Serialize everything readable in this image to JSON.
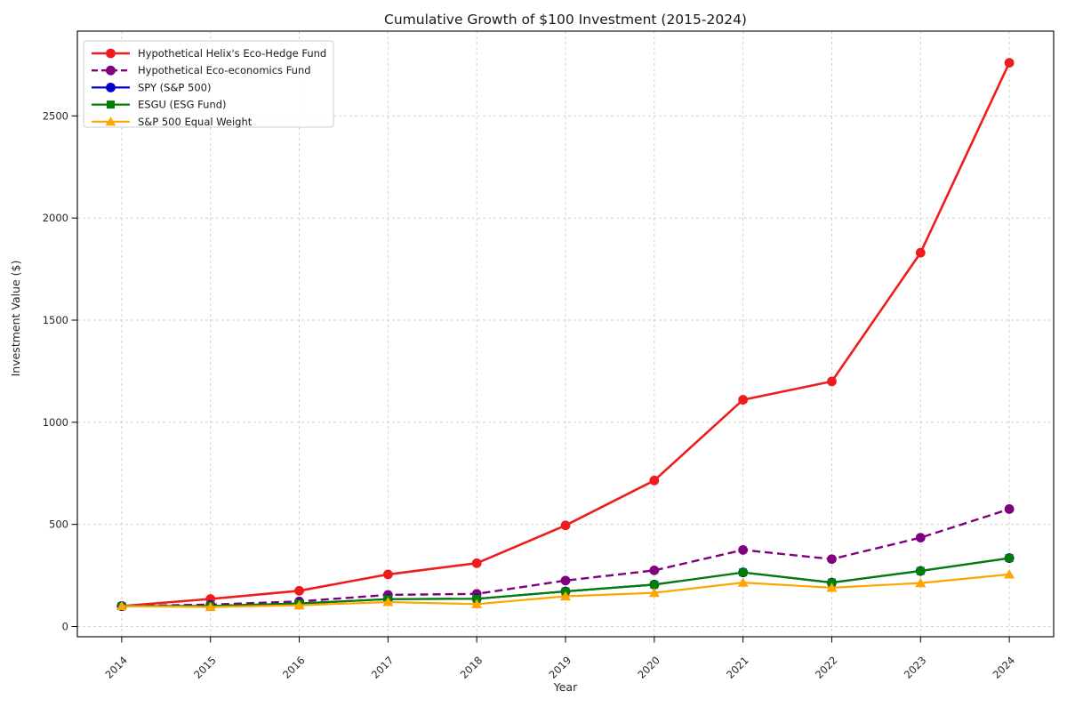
{
  "chart_data": {
    "type": "line",
    "title": "Cumulative Growth of $100 Investment (2015-2024)",
    "xlabel": "Year",
    "ylabel": "Investment Value ($)",
    "x": [
      2014,
      2015,
      2016,
      2017,
      2018,
      2019,
      2020,
      2021,
      2022,
      2023,
      2024
    ],
    "xlim": [
      2013.5,
      2024.5
    ],
    "ylim": [
      -50,
      2915
    ],
    "yticks": [
      0,
      500,
      1000,
      1500,
      2000,
      2500
    ],
    "grid": true,
    "grid_style": "dashed",
    "grid_color": "#cccccc",
    "legend_position": "upper left",
    "background": "#ffffff",
    "series": [
      {
        "name": "Hypothetical Helix's Eco-Hedge Fund",
        "color": "#ee1c1c",
        "style": "solid",
        "marker": "circle",
        "linewidth": 2.6,
        "values": [
          100,
          135,
          175,
          255,
          310,
          495,
          715,
          1110,
          1200,
          1830,
          2760
        ]
      },
      {
        "name": "Hypothetical Eco-economics Fund",
        "color": "#800080",
        "style": "dashed",
        "marker": "circle",
        "linewidth": 2.4,
        "values": [
          100,
          107,
          123,
          155,
          160,
          225,
          275,
          375,
          330,
          435,
          575
        ]
      },
      {
        "name": "SPY (S&P 500)",
        "color": "#0000cd",
        "style": "solid",
        "marker": "circle",
        "linewidth": 2.2,
        "values": [
          100,
          101,
          113,
          134,
          136,
          172,
          205,
          265,
          215,
          272,
          335
        ]
      },
      {
        "name": "ESGU (ESG Fund)",
        "color": "#008000",
        "style": "solid",
        "marker": "square",
        "linewidth": 2.2,
        "values": [
          100,
          101,
          113,
          134,
          136,
          172,
          205,
          265,
          215,
          272,
          335
        ]
      },
      {
        "name": "S&P 500 Equal Weight",
        "color": "#ffa500",
        "style": "solid",
        "marker": "triangle",
        "linewidth": 2.2,
        "values": [
          100,
          96,
          104,
          120,
          110,
          148,
          165,
          215,
          190,
          213,
          255
        ]
      }
    ]
  }
}
